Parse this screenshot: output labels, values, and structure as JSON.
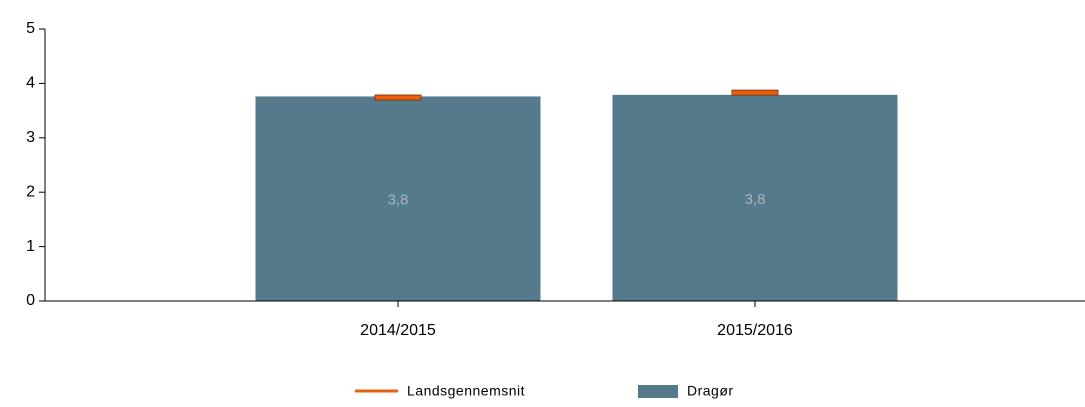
{
  "chart_data": {
    "type": "bar",
    "categories": [
      "2014/2015",
      "2015/2016"
    ],
    "series": [
      {
        "name": "Landsgennemsnit",
        "color": "#e8600c",
        "values": [
          3.74,
          3.83
        ]
      },
      {
        "name": "Dragør",
        "color": "#557a8c",
        "values": [
          3.76,
          3.79
        ],
        "value_labels": [
          "3,8",
          "3,8"
        ]
      }
    ],
    "ylim": [
      0,
      5
    ],
    "yticks": [
      0,
      1,
      2,
      3,
      4,
      5
    ]
  }
}
